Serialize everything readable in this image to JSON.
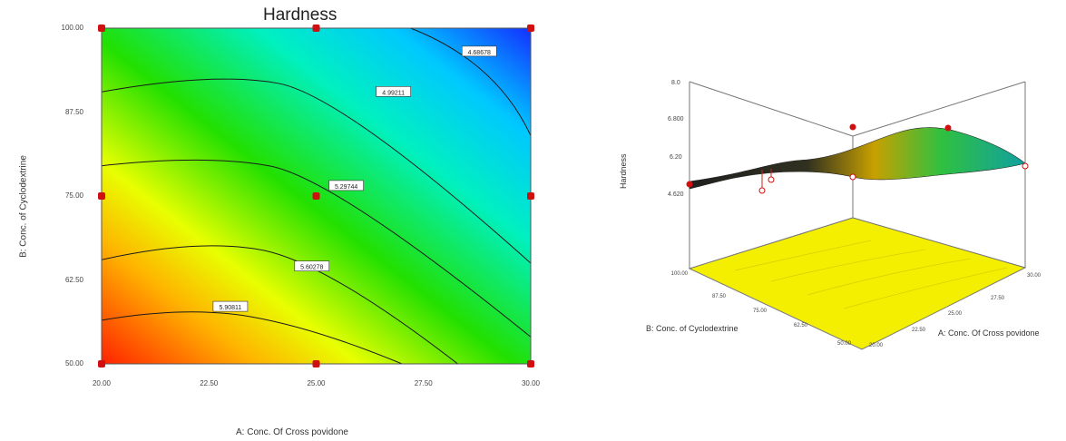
{
  "chart_data": [
    {
      "type": "contour",
      "title": "Hardness",
      "xlabel": "A: Conc. Of Cross povidone",
      "ylabel": "B: Conc. of Cyclodextrine",
      "x_ticks": [
        "20.00",
        "22.50",
        "25.00",
        "27.50",
        "30.00"
      ],
      "y_ticks": [
        "50.00",
        "62.50",
        "75.00",
        "87.50",
        "100.00"
      ],
      "xlim": [
        20,
        30
      ],
      "ylim": [
        50,
        100
      ],
      "contours": [
        {
          "level": 5.90811,
          "label": "5.90811"
        },
        {
          "level": 5.60278,
          "label": "5.60278"
        },
        {
          "level": 5.29744,
          "label": "5.29744"
        },
        {
          "level": 4.99211,
          "label": "4.99211"
        },
        {
          "level": 4.68678,
          "label": "4.68678"
        }
      ],
      "design_points": [
        {
          "x": 20,
          "y": 50
        },
        {
          "x": 25,
          "y": 50
        },
        {
          "x": 30,
          "y": 50
        },
        {
          "x": 20,
          "y": 75
        },
        {
          "x": 25,
          "y": 75
        },
        {
          "x": 30,
          "y": 75
        },
        {
          "x": 20,
          "y": 100
        },
        {
          "x": 25,
          "y": 100
        },
        {
          "x": 30,
          "y": 100
        }
      ],
      "colors": {
        "low": "#1a2fff",
        "high": "#ff2a00",
        "points": "#d01010"
      }
    },
    {
      "type": "surface3d",
      "zlabel": "Hardness",
      "xlabel": "A: Conc. Of Cross povidone",
      "ylabel": "B: Conc. of Cyclodextrine",
      "z_ticks": [
        "4.620",
        "6.20",
        "6.800",
        "8.0"
      ],
      "x_ticks": [
        "20.00",
        "22.50",
        "25.00",
        "27.50",
        "30.00"
      ],
      "y_ticks": [
        "50.00",
        "62.50",
        "75.00",
        "87.50",
        "100.00"
      ],
      "floor_color": "#f2ee00"
    }
  ]
}
